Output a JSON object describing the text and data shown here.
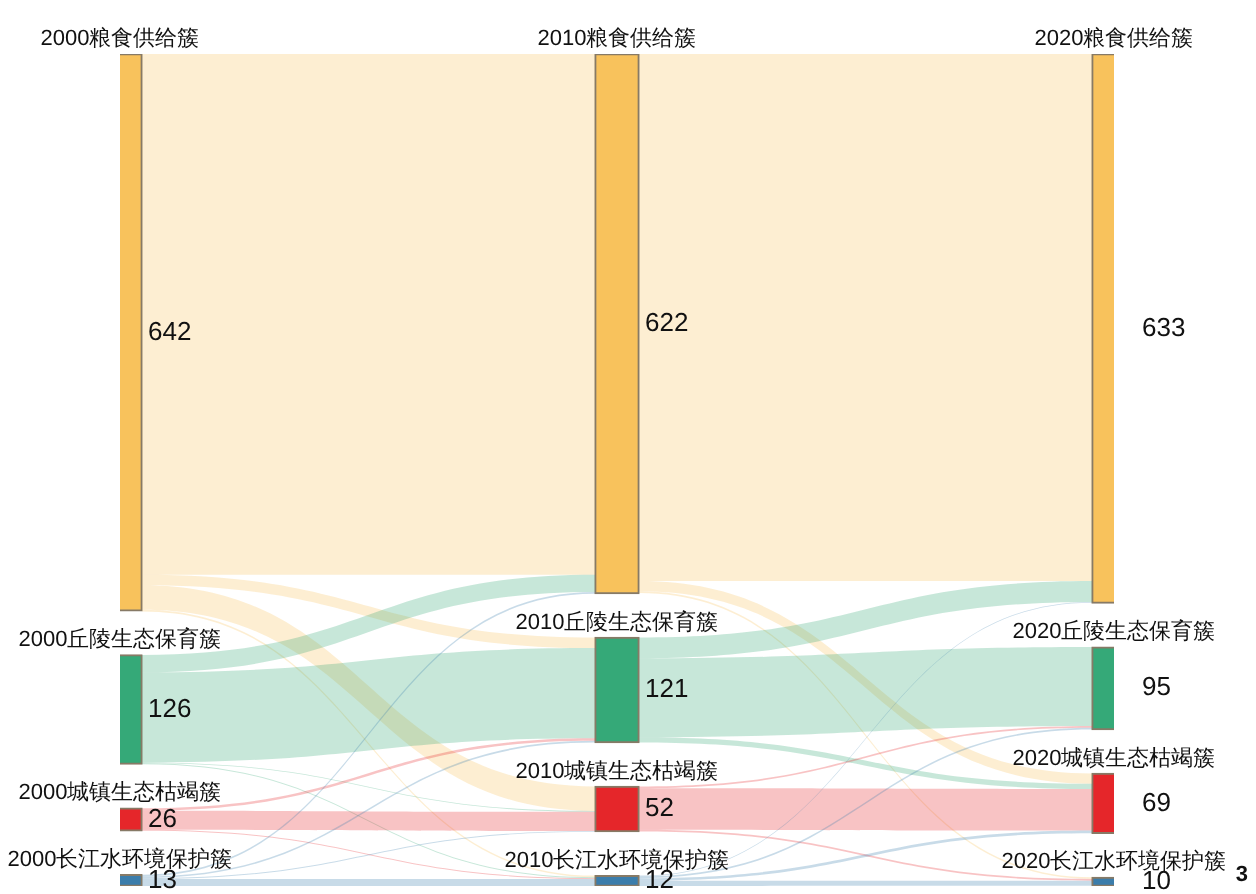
{
  "chart_data": {
    "type": "other",
    "categories": [
      "2000粮食供给簇",
      "2000丘陵生态保育簇",
      "2000城镇生态枯竭簇",
      "2000长江水环境保护簇",
      "2010粮食供给簇",
      "2010丘陵生态保育簇",
      "2010城镇生态枯竭簇",
      "2010长江水环境保护簇",
      "2020粮食供给簇",
      "2020丘陵生态保育簇",
      "2020城镇生态枯竭簇",
      "2020长江水环境保护簇"
    ],
    "values": [
      642,
      126,
      26,
      13,
      622,
      121,
      52,
      12,
      633,
      95,
      69,
      10
    ],
    "colors": [
      "#f8c25c",
      "#35a978",
      "#e5262a",
      "#3b7dab",
      "#f8c25c",
      "#35a978",
      "#e5262a",
      "#3b7dab",
      "#f8c25c",
      "#35a978",
      "#e5262a",
      "#3b7dab"
    ],
    "data_labels": true,
    "annotations": [
      "3"
    ]
  }
}
